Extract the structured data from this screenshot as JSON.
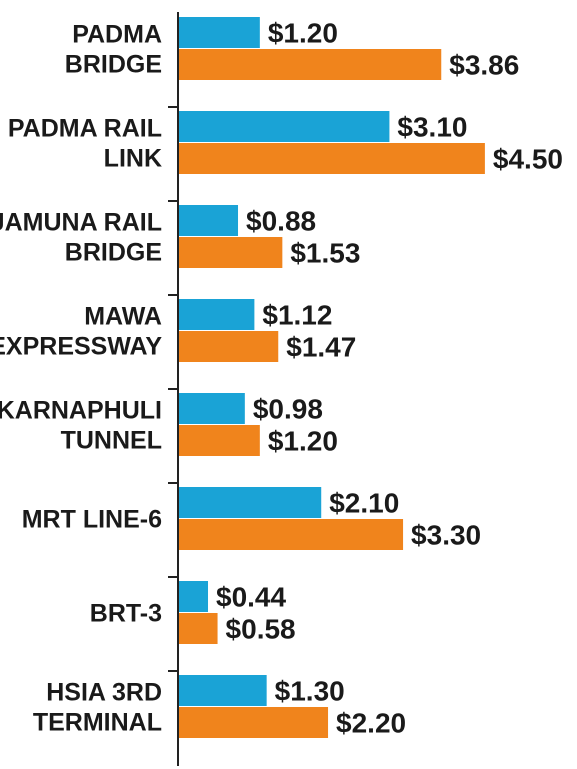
{
  "chart_data": {
    "type": "bar",
    "orientation": "horizontal",
    "categories": [
      [
        "PADMA",
        "BRIDGE"
      ],
      [
        "PADMA RAIL",
        "LINK"
      ],
      [
        "JAMUNA RAIL",
        "BRIDGE"
      ],
      [
        "MAWA",
        "EXPRESSWAY"
      ],
      [
        "KARNAPHULI",
        "TUNNEL"
      ],
      [
        "MRT LINE-6"
      ],
      [
        "BRT-3"
      ],
      [
        "HSIA 3RD",
        "TERMINAL"
      ]
    ],
    "series": [
      {
        "color": "#1aa3d6",
        "values": [
          1.2,
          3.1,
          0.88,
          1.12,
          0.98,
          2.1,
          0.44,
          1.3
        ],
        "labels": [
          "$1.20",
          "$3.10",
          "$0.88",
          "$1.12",
          "$0.98",
          "$2.10",
          "$0.44",
          "$1.30"
        ]
      },
      {
        "color": "#f0841c",
        "values": [
          3.86,
          4.5,
          1.53,
          1.47,
          1.2,
          3.3,
          0.58,
          2.2
        ],
        "labels": [
          "$3.86",
          "$4.50",
          "$1.53",
          "$1.47",
          "$1.20",
          "$3.30",
          "$0.58",
          "$2.20"
        ]
      }
    ],
    "xlim": [
      0,
      4.5
    ],
    "grid": false,
    "legend": "none"
  }
}
